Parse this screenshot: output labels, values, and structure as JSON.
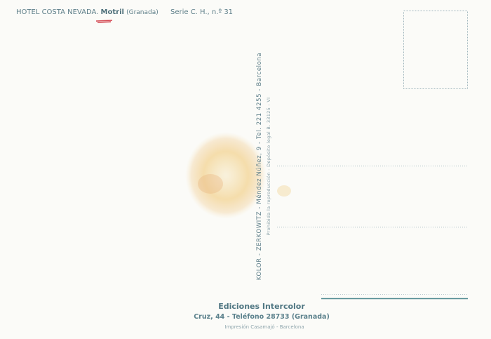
{
  "header": {
    "hotel": "HOTEL COSTA NEVADA.",
    "town": "Motril",
    "province": "(Granada)",
    "series": "Serie C. H., n.º 31"
  },
  "vertical": {
    "printer": "KOLOR - ZERKOWITZ - Méndez Núñez, 9 - Tel. 221 4255 - Barcelona",
    "legal": "Prohibida la reproducción - Depósito legal B. 33125 - VI"
  },
  "footer": {
    "publisher": "Ediciones Intercolor",
    "address": "Cruz, 44 - Teléfono 28733 (Granada)",
    "printing": "Impresión Casamajó - Barcelona"
  }
}
